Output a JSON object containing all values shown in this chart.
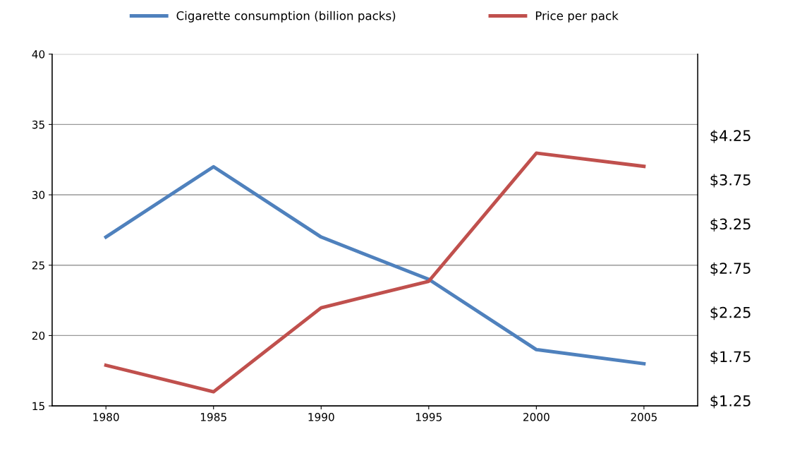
{
  "chart_data": {
    "type": "line",
    "categories": [
      "1980",
      "1985",
      "1990",
      "1995",
      "2000",
      "2005"
    ],
    "series": [
      {
        "name": "Cigarette consumption (billion packs)",
        "color": "#4f81bd",
        "values": [
          27,
          32,
          27,
          24,
          19,
          18
        ]
      },
      {
        "name": "Price per pack",
        "color": "#c0504d",
        "axis": "y2",
        "values": [
          1.65,
          1.35,
          2.3,
          2.6,
          4.05,
          3.9
        ]
      }
    ],
    "ylim": [
      15,
      40
    ],
    "yticks": [
      15,
      20,
      25,
      30,
      35,
      40
    ],
    "y2lim": [
      1.19,
      5.17
    ],
    "y2ticks": [
      {
        "value": 1.25,
        "label": "$1.25"
      },
      {
        "value": 1.75,
        "label": "$1.75"
      },
      {
        "value": 2.25,
        "label": "$2.25"
      },
      {
        "value": 2.75,
        "label": "$2.75"
      },
      {
        "value": 3.25,
        "label": "$3.25"
      },
      {
        "value": 3.75,
        "label": "$3.75"
      },
      {
        "value": 4.25,
        "label": "$4.25"
      }
    ],
    "grid": "y",
    "legend": "top",
    "marker": "none",
    "line_style": "solid"
  }
}
